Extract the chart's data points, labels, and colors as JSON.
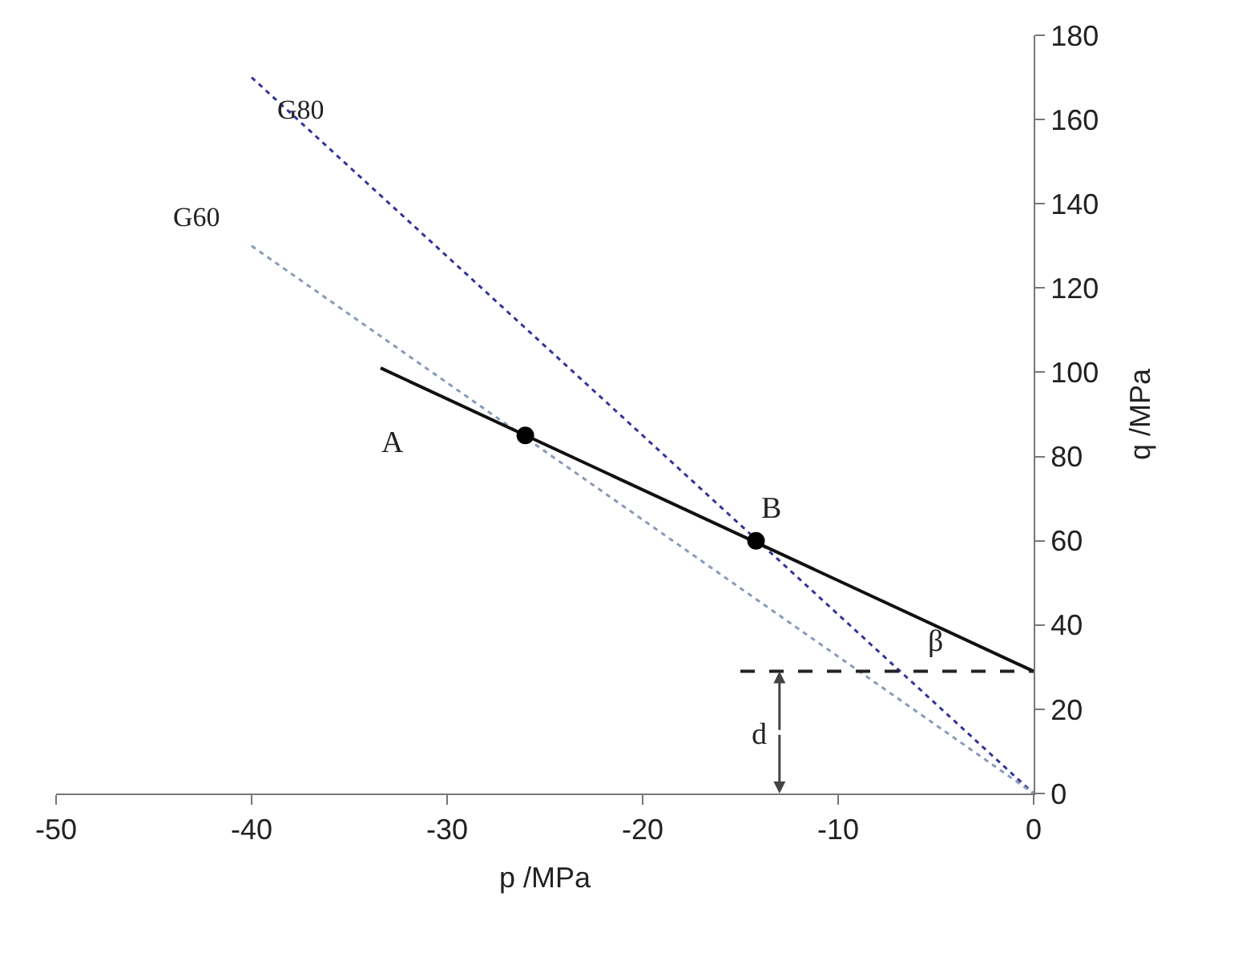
{
  "chart_data": {
    "type": "line",
    "xlabel": "p /MPa",
    "ylabel": "q /MPa",
    "xlim": [
      -50,
      0
    ],
    "ylim": [
      0,
      180
    ],
    "xticks": [
      -50,
      -40,
      -30,
      -20,
      -10,
      0
    ],
    "yticks": [
      0,
      20,
      40,
      60,
      80,
      100,
      120,
      140,
      160,
      180
    ],
    "grid": false,
    "legend": false,
    "series": [
      {
        "name": "G80",
        "color": "#33339a",
        "line_style": "dotted",
        "x": [
          -40,
          0
        ],
        "values": [
          170,
          0
        ]
      },
      {
        "name": "G60",
        "color": "#8a9ab8",
        "line_style": "dotted",
        "x": [
          -40,
          0
        ],
        "values": [
          130,
          0
        ]
      },
      {
        "color": "#111111",
        "line_style": "solid",
        "x": [
          -33.4,
          0
        ],
        "values": [
          101,
          29
        ]
      },
      {
        "type": "scatter",
        "marker": "circle",
        "color": "#000000",
        "x": [
          -26,
          -14.2
        ],
        "values": [
          85,
          60
        ]
      },
      {
        "color": "#222222",
        "line_style": "dashed",
        "x": [
          -15,
          0
        ],
        "values": [
          29,
          29
        ]
      }
    ],
    "annotations": [
      "A",
      {
        "text": "B",
        "x": -14.2,
        "y": 60
      },
      "β",
      {
        "text": "d",
        "x": -13,
        "y": 29
      }
    ]
  }
}
